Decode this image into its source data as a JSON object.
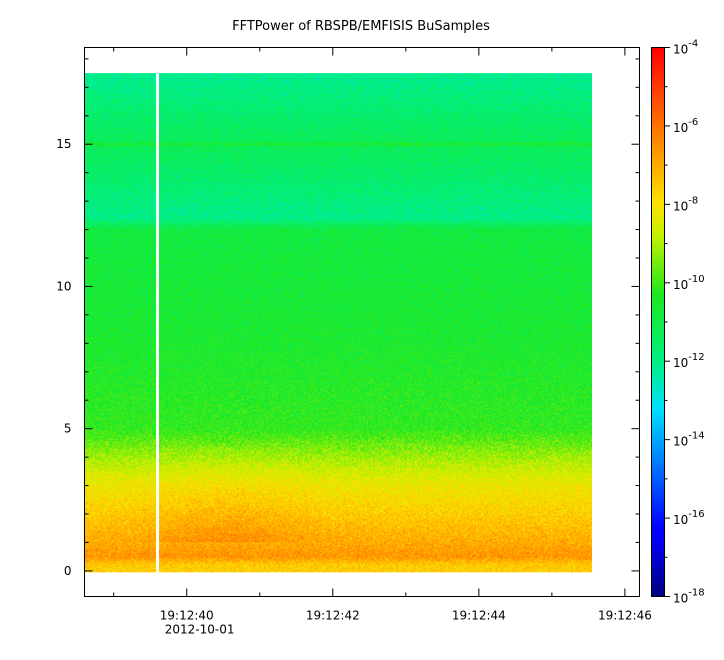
{
  "chart_data": {
    "type": "heatmap",
    "title": "FFTPower of RBSPB/EMFISIS  BuSamples",
    "xlabel": "",
    "ylabel": "",
    "x_ticks": [
      {
        "label": "19:12:40",
        "sublabel": "2012-10-01",
        "value": 40
      },
      {
        "label": "19:12:42",
        "value": 42
      },
      {
        "label": "19:12:44",
        "value": 44
      },
      {
        "label": "19:12:46",
        "value": 46
      }
    ],
    "x_minor_ticks": [
      39,
      41,
      43,
      45
    ],
    "xlim": [
      38.6,
      46.2
    ],
    "data_x_range": [
      38.6,
      45.55
    ],
    "gap_at_x": 39.6,
    "y_ticks": [
      0,
      5,
      10,
      15
    ],
    "ylim": [
      -0.9,
      18.4
    ],
    "data_y_range": [
      -0.05,
      17.5
    ],
    "colorbar": {
      "scale": "log",
      "range": [
        1e-18,
        0.0001
      ],
      "ticks": [
        {
          "base": "10",
          "exp": "-4"
        },
        {
          "base": "10",
          "exp": "-6"
        },
        {
          "base": "10",
          "exp": "-8"
        },
        {
          "base": "10",
          "exp": "-10"
        },
        {
          "base": "10",
          "exp": "-12"
        },
        {
          "base": "10",
          "exp": "-14"
        },
        {
          "base": "10",
          "exp": "-16"
        },
        {
          "base": "10",
          "exp": "-18"
        }
      ]
    },
    "power_profile_log10": [
      {
        "y": 0.2,
        "value": -7.6
      },
      {
        "y": 0.5,
        "value": -6.6
      },
      {
        "y": 1.0,
        "value": -7.0
      },
      {
        "y": 2.0,
        "value": -7.6
      },
      {
        "y": 3.0,
        "value": -8.2
      },
      {
        "y": 3.8,
        "value": -8.9
      },
      {
        "y": 5.0,
        "value": -10.2
      },
      {
        "y": 8.0,
        "value": -10.6
      },
      {
        "y": 12.0,
        "value": -10.9
      },
      {
        "y": 12.4,
        "value": -12.0
      },
      {
        "y": 15.0,
        "value": -11.3
      },
      {
        "y": 17.5,
        "value": -12.1
      }
    ]
  }
}
